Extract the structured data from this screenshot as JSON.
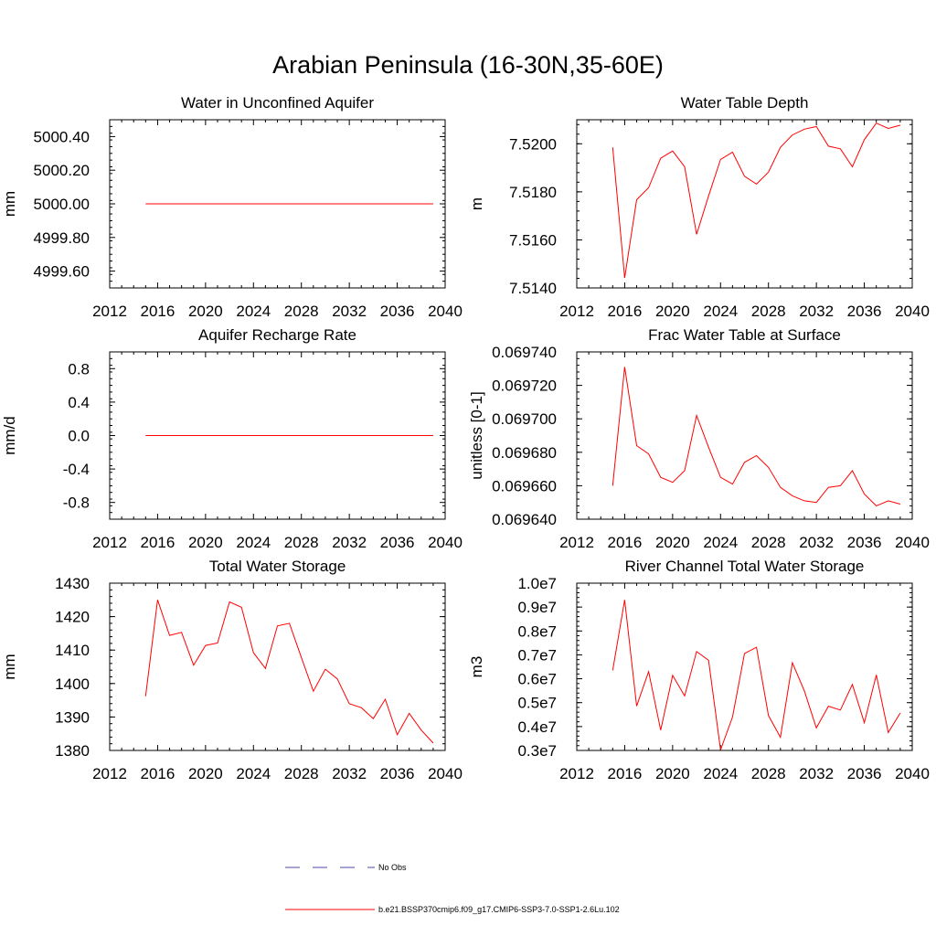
{
  "page": {
    "title": "Arabian Peninsula (16-30N,35-60E)"
  },
  "legend": [
    {
      "label": "No Obs",
      "color": "#4a4aa8",
      "style": "dashed"
    },
    {
      "label": "b.e21.BSSP370cmip6.f09_g17.CMIP6-SSP3-7.0-SSP1-2.6Lu.102",
      "color": "#ff0000",
      "style": "solid"
    }
  ],
  "line_color": "#ff0000",
  "chart_data": [
    {
      "type": "line",
      "title": "Water in Unconfined Aquifer",
      "xlabel": "",
      "ylabel": "mm",
      "xlim": [
        2012,
        2040
      ],
      "xticks": [
        2012,
        2016,
        2020,
        2024,
        2028,
        2032,
        2036,
        2040
      ],
      "ylim": [
        4999.5,
        5000.5
      ],
      "yticks": [
        4999.6,
        4999.8,
        5000.0,
        5000.2,
        5000.4
      ],
      "ytick_labels": [
        "4999.60",
        "4999.80",
        "5000.00",
        "5000.20",
        "5000.40"
      ],
      "yminor": 0.04,
      "x": [
        2015,
        2016,
        2017,
        2018,
        2019,
        2020,
        2021,
        2022,
        2023,
        2024,
        2025,
        2026,
        2027,
        2028,
        2029,
        2030,
        2031,
        2032,
        2033,
        2034,
        2035,
        2036,
        2037,
        2038,
        2039
      ],
      "series": [
        {
          "values": [
            5000,
            5000,
            5000,
            5000,
            5000,
            5000,
            5000,
            5000,
            5000,
            5000,
            5000,
            5000,
            5000,
            5000,
            5000,
            5000,
            5000,
            5000,
            5000,
            5000,
            5000,
            5000,
            5000,
            5000,
            5000
          ]
        }
      ]
    },
    {
      "type": "line",
      "title": "Water Table Depth",
      "xlabel": "",
      "ylabel": "m",
      "xlim": [
        2012,
        2040
      ],
      "xticks": [
        2012,
        2016,
        2020,
        2024,
        2028,
        2032,
        2036,
        2040
      ],
      "ylim": [
        7.514,
        7.521
      ],
      "yticks": [
        7.514,
        7.516,
        7.518,
        7.52
      ],
      "ytick_labels": [
        "7.5140",
        "7.5160",
        "7.5180",
        "7.5200"
      ],
      "yminor": 0.0004,
      "x": [
        2015,
        2016,
        2017,
        2018,
        2019,
        2020,
        2021,
        2022,
        2023,
        2024,
        2025,
        2026,
        2027,
        2028,
        2029,
        2030,
        2031,
        2032,
        2033,
        2034,
        2035,
        2036,
        2037,
        2038,
        2039
      ],
      "series": [
        {
          "values": [
            7.51985,
            7.51442,
            7.51767,
            7.51817,
            7.5194,
            7.5197,
            7.51904,
            7.51623,
            7.51783,
            7.51935,
            7.51965,
            7.51865,
            7.51832,
            7.51882,
            7.51985,
            7.52037,
            7.52061,
            7.52072,
            7.5199,
            7.51979,
            7.51904,
            7.52017,
            7.52086,
            7.52064,
            7.52077
          ]
        }
      ]
    },
    {
      "type": "line",
      "title": "Aquifer Recharge Rate",
      "xlabel": "",
      "ylabel": "mm/d",
      "xlim": [
        2012,
        2040
      ],
      "xticks": [
        2012,
        2016,
        2020,
        2024,
        2028,
        2032,
        2036,
        2040
      ],
      "ylim": [
        -1.0,
        1.0
      ],
      "yticks": [
        -0.8,
        -0.4,
        0.0,
        0.4,
        0.8
      ],
      "ytick_labels": [
        "-0.8",
        "-0.4",
        "0.0",
        "0.4",
        "0.8"
      ],
      "yminor": 0.08,
      "x": [
        2015,
        2016,
        2017,
        2018,
        2019,
        2020,
        2021,
        2022,
        2023,
        2024,
        2025,
        2026,
        2027,
        2028,
        2029,
        2030,
        2031,
        2032,
        2033,
        2034,
        2035,
        2036,
        2037,
        2038,
        2039
      ],
      "series": [
        {
          "values": [
            0,
            0,
            0,
            0,
            0,
            0,
            0,
            0,
            0,
            0,
            0,
            0,
            0,
            0,
            0,
            0,
            0,
            0,
            0,
            0,
            0,
            0,
            0,
            0,
            0
          ]
        }
      ]
    },
    {
      "type": "line",
      "title": "Frac Water Table at Surface",
      "xlabel": "",
      "ylabel": "unitless [0-1]",
      "xlim": [
        2012,
        2040
      ],
      "xticks": [
        2012,
        2016,
        2020,
        2024,
        2028,
        2032,
        2036,
        2040
      ],
      "ylim": [
        0.06964,
        0.06974
      ],
      "yticks": [
        0.06964,
        0.06966,
        0.06968,
        0.0697,
        0.06972,
        0.06974
      ],
      "ytick_labels": [
        "0.069640",
        "0.069660",
        "0.069680",
        "0.069700",
        "0.069720",
        "0.069740"
      ],
      "yminor": 4e-06,
      "x": [
        2015,
        2016,
        2017,
        2018,
        2019,
        2020,
        2021,
        2022,
        2023,
        2024,
        2025,
        2026,
        2027,
        2028,
        2029,
        2030,
        2031,
        2032,
        2033,
        2034,
        2035,
        2036,
        2037,
        2038,
        2039
      ],
      "series": [
        {
          "values": [
            0.06966,
            0.069731,
            0.069684,
            0.069679,
            0.069665,
            0.069662,
            0.069669,
            0.069702,
            0.069683,
            0.069665,
            0.069661,
            0.069674,
            0.069678,
            0.069671,
            0.069659,
            0.069654,
            0.069651,
            0.06965,
            0.069659,
            0.06966,
            0.069669,
            0.069655,
            0.069648,
            0.069651,
            0.069649
          ]
        }
      ]
    },
    {
      "type": "line",
      "title": "Total Water Storage",
      "xlabel": "",
      "ylabel": "mm",
      "xlim": [
        2012,
        2040
      ],
      "xticks": [
        2012,
        2016,
        2020,
        2024,
        2028,
        2032,
        2036,
        2040
      ],
      "ylim": [
        1380,
        1430
      ],
      "yticks": [
        1380,
        1390,
        1400,
        1410,
        1420,
        1430
      ],
      "ytick_labels": [
        "1380",
        "1390",
        "1400",
        "1410",
        "1420",
        "1430"
      ],
      "yminor": 2,
      "x": [
        2015,
        2016,
        2017,
        2018,
        2019,
        2020,
        2021,
        2022,
        2023,
        2024,
        2025,
        2026,
        2027,
        2028,
        2029,
        2030,
        2031,
        2032,
        2033,
        2034,
        2035,
        2036,
        2037,
        2038,
        2039
      ],
      "series": [
        {
          "values": [
            1396.2,
            1425.0,
            1414.4,
            1415.3,
            1405.5,
            1411.4,
            1412.1,
            1424.4,
            1422.8,
            1409.2,
            1404.5,
            1417.2,
            1418.0,
            1407.8,
            1397.7,
            1404.3,
            1401.4,
            1394.0,
            1392.8,
            1389.5,
            1395.3,
            1384.7,
            1391.1,
            1386.1,
            1382.2
          ]
        }
      ]
    },
    {
      "type": "line",
      "title": "River Channel Total Water Storage",
      "xlabel": "",
      "ylabel": "m3",
      "xlim": [
        2012,
        2040
      ],
      "xticks": [
        2012,
        2016,
        2020,
        2024,
        2028,
        2032,
        2036,
        2040
      ],
      "ylim": [
        3000000,
        10000000
      ],
      "yticks": [
        3000000,
        4000000,
        5000000,
        6000000,
        7000000,
        8000000,
        9000000,
        10000000
      ],
      "ytick_labels": [
        "0.3e7",
        "0.4e7",
        "0.5e7",
        "0.6e7",
        "0.7e7",
        "0.8e7",
        "0.9e7",
        "1.0e7"
      ],
      "yminor": 200000,
      "x": [
        2015,
        2016,
        2017,
        2018,
        2019,
        2020,
        2021,
        2022,
        2023,
        2024,
        2025,
        2026,
        2027,
        2028,
        2029,
        2030,
        2031,
        2032,
        2033,
        2034,
        2035,
        2036,
        2037,
        2038,
        2039
      ],
      "series": [
        {
          "values": [
            6350000,
            9300000,
            4860000,
            6300000,
            3850000,
            6140000,
            5280000,
            7140000,
            6770000,
            3020000,
            4400000,
            7060000,
            7320000,
            4460000,
            3550000,
            6670000,
            5490000,
            3940000,
            4850000,
            4690000,
            5760000,
            4160000,
            6160000,
            3750000,
            4570000
          ]
        }
      ]
    }
  ]
}
